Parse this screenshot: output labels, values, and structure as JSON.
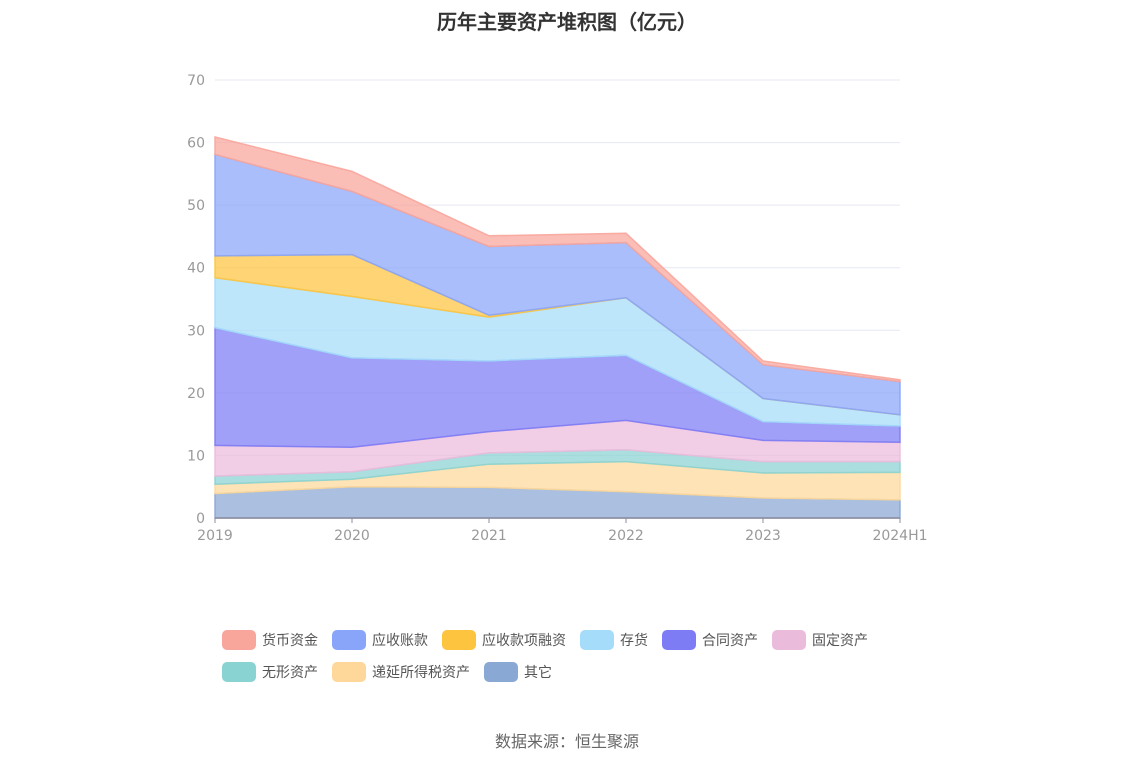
{
  "chart_data": {
    "type": "area",
    "stacked": true,
    "title": "历年主要资产堆积图（亿元）",
    "categories": [
      "2019",
      "2020",
      "2021",
      "2022",
      "2023",
      "2024H1"
    ],
    "ylim": [
      0,
      70
    ],
    "yticks": [
      0,
      10,
      20,
      30,
      40,
      50,
      60,
      70
    ],
    "grid": true,
    "legend_position": "bottom",
    "series": [
      {
        "name": "其它",
        "color": "#8aa8d4",
        "values": [
          3.9,
          5.0,
          4.9,
          4.2,
          3.2,
          2.9
        ]
      },
      {
        "name": "递延所得税资产",
        "color": "#fdd89a",
        "values": [
          1.5,
          1.2,
          3.7,
          4.8,
          4.0,
          4.4
        ]
      },
      {
        "name": "无形资产",
        "color": "#8ad3d3",
        "values": [
          1.3,
          1.2,
          1.8,
          1.9,
          1.8,
          1.7
        ]
      },
      {
        "name": "固定资产",
        "color": "#ebbbdb",
        "values": [
          4.9,
          3.9,
          3.4,
          4.7,
          3.4,
          3.1
        ]
      },
      {
        "name": "合同资产",
        "color": "#7d7cf5",
        "values": [
          18.8,
          14.3,
          11.3,
          10.4,
          3.0,
          2.6
        ]
      },
      {
        "name": "存货",
        "color": "#a5dcfa",
        "values": [
          8.0,
          9.8,
          7.0,
          9.2,
          3.7,
          1.8
        ]
      },
      {
        "name": "应收款项融资",
        "color": "#fdc43f",
        "values": [
          3.5,
          6.7,
          0.3,
          0,
          0,
          0
        ]
      },
      {
        "name": "应收账款",
        "color": "#89a5fa",
        "values": [
          16.2,
          10.1,
          11.0,
          8.8,
          5.4,
          5.3
        ]
      },
      {
        "name": "货币资金",
        "color": "#f8a59b",
        "values": [
          2.8,
          3.2,
          1.7,
          1.5,
          0.6,
          0.3
        ]
      }
    ]
  },
  "legend_items": [
    {
      "label": "货币资金",
      "color": "#f8a59b"
    },
    {
      "label": "应收账款",
      "color": "#89a5fa"
    },
    {
      "label": "应收款项融资",
      "color": "#fdc43f"
    },
    {
      "label": "存货",
      "color": "#a5dcfa"
    },
    {
      "label": "合同资产",
      "color": "#7d7cf5"
    },
    {
      "label": "固定资产",
      "color": "#ebbbdb"
    },
    {
      "label": "无形资产",
      "color": "#8ad3d3"
    },
    {
      "label": "递延所得税资产",
      "color": "#fdd89a"
    },
    {
      "label": "其它",
      "color": "#8aa8d4"
    }
  ],
  "source": "数据来源：恒生聚源"
}
